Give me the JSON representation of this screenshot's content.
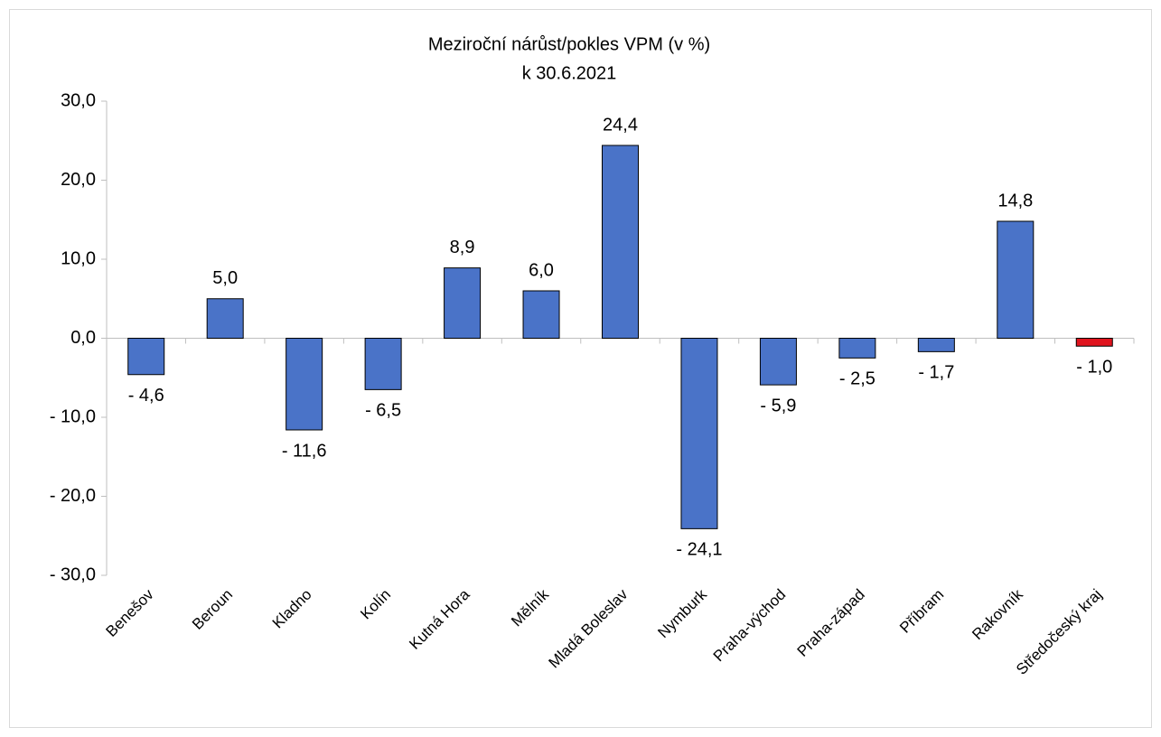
{
  "chart_data": {
    "type": "bar",
    "title": "Meziroční nárůst/pokles VPM (v %)",
    "subtitle": "k 30.6.2021",
    "categories": [
      "Benešov",
      "Beroun",
      "Kladno",
      "Kolín",
      "Kutná Hora",
      "Mělník",
      "Mladá Boleslav",
      "Nymburk",
      "Praha-východ",
      "Praha-západ",
      "Příbram",
      "Rakovník",
      "Středočeský kraj"
    ],
    "values": [
      -4.6,
      5.0,
      -11.6,
      -6.5,
      8.9,
      6.0,
      24.4,
      -24.1,
      -5.9,
      -2.5,
      -1.7,
      14.8,
      -1.0
    ],
    "value_labels": [
      "- 4,6",
      "5,0",
      "- 11,6",
      "- 6,5",
      "8,9",
      "6,0",
      "24,4",
      "- 24,1",
      "- 5,9",
      "- 2,5",
      "- 1,7",
      "14,8",
      "- 1,0"
    ],
    "colors": [
      "#4a73c8",
      "#4a73c8",
      "#4a73c8",
      "#4a73c8",
      "#4a73c8",
      "#4a73c8",
      "#4a73c8",
      "#4a73c8",
      "#4a73c8",
      "#4a73c8",
      "#4a73c8",
      "#4a73c8",
      "#e0141e"
    ],
    "ylim": [
      -30,
      30
    ],
    "yticks": [
      {
        "value": 30,
        "label": "30,0"
      },
      {
        "value": 20,
        "label": "20,0"
      },
      {
        "value": 10,
        "label": "10,0"
      },
      {
        "value": 0,
        "label": "0,0"
      },
      {
        "value": -10,
        "label": "- 10,0"
      },
      {
        "value": -20,
        "label": "- 20,0"
      },
      {
        "value": -30,
        "label": "- 30,0"
      }
    ],
    "grid": false
  }
}
